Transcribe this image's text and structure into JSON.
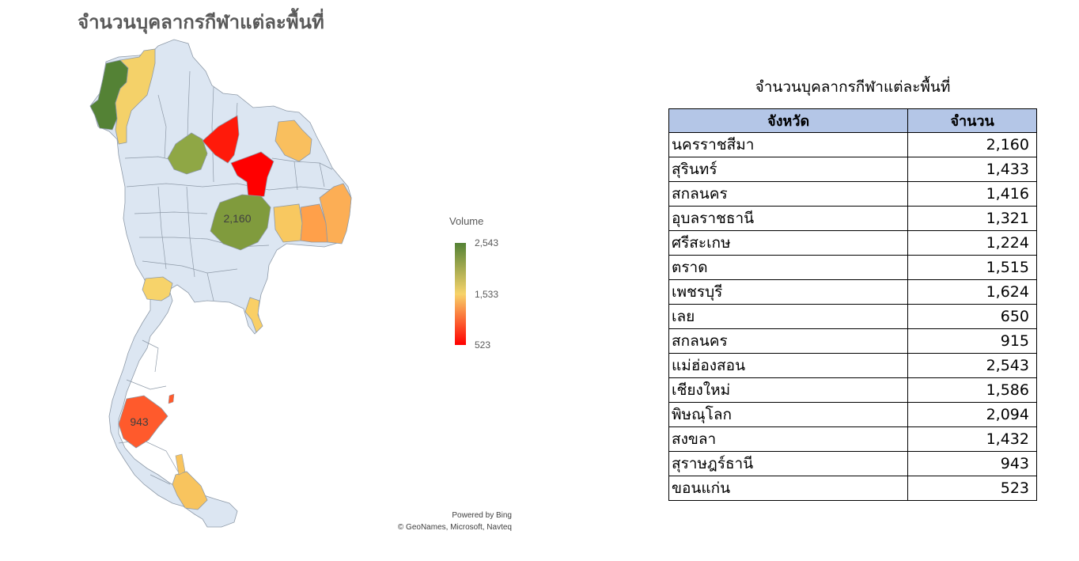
{
  "map": {
    "title": "จำนวนบุคลากรกีฬาแต่ละพื้นที่",
    "legend": {
      "title": "Volume",
      "max_label": "2,543",
      "mid_label": "1,533",
      "min_label": "523",
      "colors": {
        "high": "#548235",
        "mid": "#f7d36a",
        "low": "#ff0000"
      }
    },
    "region_labels": {
      "nakhon_ratchasima": "2,160",
      "surat_thani": "943"
    },
    "attribution": {
      "line1": "Powered by Bing",
      "line2": "© GeoNames, Microsoft, Navteq"
    },
    "base_fill": "#dce6f2",
    "border_color": "#8e9aa8"
  },
  "table": {
    "title": "จำนวนบุคลากรกีฬาแต่ละพื้นที่",
    "headers": [
      "จังหวัด",
      "จำนวน"
    ],
    "header_bg": "#b4c6e7",
    "rows": [
      [
        "นครราชสีมา",
        "2,160"
      ],
      [
        "สุรินทร์",
        "1,433"
      ],
      [
        "สกลนคร",
        "1,416"
      ],
      [
        "อุบลราชธานี",
        "1,321"
      ],
      [
        "ศรีสะเกษ",
        "1,224"
      ],
      [
        "ตราด",
        "1,515"
      ],
      [
        "เพชรบุรี",
        "1,624"
      ],
      [
        "เลย",
        "650"
      ],
      [
        "สกลนคร",
        "915"
      ],
      [
        "แม่ฮ่องสอน",
        "2,543"
      ],
      [
        "เชียงใหม่",
        "1,586"
      ],
      [
        "พิษณุโลก",
        "2,094"
      ],
      [
        "สงขลา",
        "1,432"
      ],
      [
        "สุราษฎร์ธานี",
        "943"
      ],
      [
        "ขอนแก่น",
        "523"
      ]
    ]
  }
}
